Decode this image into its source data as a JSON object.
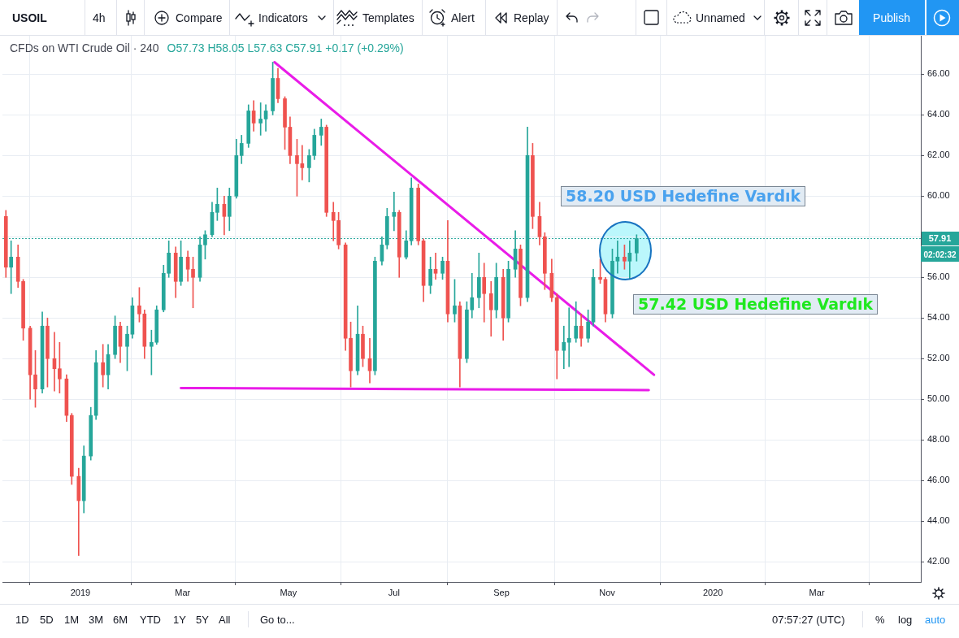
{
  "chart_data": {
    "type": "candlestick",
    "title": "CFDs on WTI Crude Oil · 240",
    "subtitle": "O57.73 H58.05 L57.63 C57.91 +0.17 (+0.29%)",
    "x": [
      "2018-11-19",
      "2018-11-22",
      "2018-11-26",
      "2018-11-29",
      "2018-12-03",
      "2018-12-06",
      "2018-12-10",
      "2018-12-13",
      "2018-12-17",
      "2018-12-20",
      "2018-12-24",
      "2018-12-27",
      "2018-12-31",
      "2019-01-03",
      "2019-01-07",
      "2019-01-10",
      "2019-01-14",
      "2019-01-17",
      "2019-01-21",
      "2019-01-24",
      "2019-01-28",
      "2019-01-31",
      "2019-02-04",
      "2019-02-07",
      "2019-02-11",
      "2019-02-14",
      "2019-02-18",
      "2019-02-21",
      "2019-02-25",
      "2019-02-28",
      "2019-03-04",
      "2019-03-07",
      "2019-03-11",
      "2019-03-14",
      "2019-03-18",
      "2019-03-21",
      "2019-03-25",
      "2019-03-28",
      "2019-04-01",
      "2019-04-04",
      "2019-04-08",
      "2019-04-11",
      "2019-04-15",
      "2019-04-18",
      "2019-04-22",
      "2019-04-25",
      "2019-04-29",
      "2019-05-02",
      "2019-05-06",
      "2019-05-09",
      "2019-05-13",
      "2019-05-16",
      "2019-05-20",
      "2019-05-23",
      "2019-05-27",
      "2019-05-30",
      "2019-06-03",
      "2019-06-06",
      "2019-06-10",
      "2019-06-13",
      "2019-06-17",
      "2019-06-20",
      "2019-06-24",
      "2019-06-27",
      "2019-07-01",
      "2019-07-04",
      "2019-07-08",
      "2019-07-11",
      "2019-07-15",
      "2019-07-18",
      "2019-07-22",
      "2019-07-25",
      "2019-07-29",
      "2019-08-01",
      "2019-08-05",
      "2019-08-08",
      "2019-08-12",
      "2019-08-15",
      "2019-08-19",
      "2019-08-22",
      "2019-08-26",
      "2019-08-29",
      "2019-09-02",
      "2019-09-05",
      "2019-09-09",
      "2019-09-12",
      "2019-09-16",
      "2019-09-19",
      "2019-09-23",
      "2019-09-26",
      "2019-09-30",
      "2019-10-03",
      "2019-10-07",
      "2019-10-10",
      "2019-10-14",
      "2019-10-17",
      "2019-10-21",
      "2019-10-24",
      "2019-10-28",
      "2019-10-31",
      "2019-11-04",
      "2019-11-07",
      "2019-11-11",
      "2019-11-14",
      "2019-11-18"
    ],
    "ohlc": [
      [
        59.0,
        59.3,
        56.0,
        56.5
      ],
      [
        56.5,
        57.8,
        55.2,
        57.0
      ],
      [
        57.0,
        57.6,
        55.5,
        55.8
      ],
      [
        55.8,
        55.9,
        52.9,
        53.5
      ],
      [
        53.5,
        53.6,
        50.0,
        51.2
      ],
      [
        51.2,
        52.4,
        49.6,
        50.5
      ],
      [
        50.5,
        54.3,
        50.3,
        53.6
      ],
      [
        53.6,
        54.0,
        50.6,
        52.0
      ],
      [
        52.0,
        53.3,
        50.4,
        51.5
      ],
      [
        51.5,
        52.8,
        50.3,
        51.0
      ],
      [
        51.0,
        51.2,
        48.9,
        49.2
      ],
      [
        49.2,
        49.3,
        45.8,
        46.2
      ],
      [
        46.2,
        46.6,
        42.3,
        45.0
      ],
      [
        45.0,
        47.7,
        44.4,
        47.2
      ],
      [
        47.2,
        49.6,
        47.0,
        49.2
      ],
      [
        49.2,
        52.4,
        49.0,
        51.8
      ],
      [
        51.8,
        52.7,
        50.6,
        51.2
      ],
      [
        51.2,
        52.7,
        50.5,
        52.2
      ],
      [
        52.2,
        54.1,
        52.0,
        53.6
      ],
      [
        53.6,
        53.8,
        51.8,
        52.6
      ],
      [
        52.6,
        53.6,
        51.4,
        53.2
      ],
      [
        53.2,
        55.0,
        53.0,
        54.6
      ],
      [
        54.6,
        55.5,
        53.8,
        54.2
      ],
      [
        54.2,
        54.4,
        52.0,
        52.6
      ],
      [
        52.6,
        53.4,
        51.2,
        52.8
      ],
      [
        52.8,
        54.6,
        52.7,
        54.4
      ],
      [
        54.4,
        56.6,
        54.3,
        56.2
      ],
      [
        56.2,
        57.8,
        56.0,
        57.2
      ],
      [
        57.2,
        57.5,
        55.0,
        55.8
      ],
      [
        55.8,
        57.8,
        55.6,
        57.0
      ],
      [
        57.0,
        57.3,
        55.8,
        56.4
      ],
      [
        56.4,
        57.0,
        54.5,
        56.0
      ],
      [
        56.0,
        58.0,
        55.8,
        57.6
      ],
      [
        57.6,
        58.3,
        56.9,
        58.1
      ],
      [
        58.1,
        59.7,
        58.0,
        59.2
      ],
      [
        59.2,
        60.4,
        58.8,
        59.6
      ],
      [
        59.6,
        60.0,
        58.1,
        59.0
      ],
      [
        59.0,
        60.4,
        58.3,
        60.0
      ],
      [
        60.0,
        62.8,
        59.9,
        62.0
      ],
      [
        62.0,
        63.0,
        61.6,
        62.6
      ],
      [
        62.6,
        64.5,
        62.4,
        64.2
      ],
      [
        64.2,
        64.7,
        63.2,
        63.6
      ],
      [
        63.6,
        64.6,
        63.0,
        63.8
      ],
      [
        63.8,
        64.5,
        63.2,
        64.2
      ],
      [
        64.2,
        66.6,
        64.0,
        65.8
      ],
      [
        65.8,
        66.3,
        64.6,
        64.8
      ],
      [
        64.8,
        64.9,
        62.3,
        63.4
      ],
      [
        63.4,
        63.9,
        61.6,
        62.0
      ],
      [
        62.0,
        62.8,
        60.0,
        61.6
      ],
      [
        61.6,
        62.5,
        60.8,
        61.4
      ],
      [
        61.4,
        62.3,
        60.7,
        62.0
      ],
      [
        62.0,
        63.3,
        61.8,
        63.0
      ],
      [
        63.0,
        63.8,
        62.5,
        63.4
      ],
      [
        63.4,
        63.5,
        59.0,
        59.2
      ],
      [
        59.2,
        59.7,
        57.8,
        58.8
      ],
      [
        58.8,
        59.2,
        57.4,
        57.6
      ],
      [
        57.6,
        57.7,
        52.4,
        53.0
      ],
      [
        53.0,
        53.8,
        50.6,
        51.4
      ],
      [
        51.4,
        54.6,
        51.2,
        53.2
      ],
      [
        53.2,
        53.6,
        51.6,
        52.0
      ],
      [
        52.0,
        53.0,
        50.8,
        51.4
      ],
      [
        51.4,
        57.0,
        51.2,
        56.8
      ],
      [
        56.8,
        58.0,
        56.6,
        57.6
      ],
      [
        57.6,
        59.4,
        57.4,
        59.0
      ],
      [
        59.0,
        60.2,
        58.3,
        59.2
      ],
      [
        59.2,
        59.3,
        56.0,
        57.0
      ],
      [
        57.0,
        58.3,
        56.9,
        57.8
      ],
      [
        57.8,
        60.9,
        57.6,
        60.4
      ],
      [
        60.4,
        60.6,
        57.6,
        57.8
      ],
      [
        57.8,
        57.9,
        54.8,
        55.6
      ],
      [
        55.6,
        57.0,
        55.2,
        56.4
      ],
      [
        56.4,
        57.2,
        55.9,
        56.2
      ],
      [
        56.2,
        57.0,
        55.9,
        56.8
      ],
      [
        56.8,
        58.8,
        53.8,
        54.2
      ],
      [
        54.2,
        55.9,
        53.8,
        54.6
      ],
      [
        54.6,
        54.8,
        50.6,
        52.0
      ],
      [
        52.0,
        54.8,
        51.8,
        54.4
      ],
      [
        54.4,
        56.2,
        54.0,
        55.0
      ],
      [
        55.0,
        57.2,
        54.5,
        56.0
      ],
      [
        56.0,
        56.7,
        53.8,
        55.2
      ],
      [
        55.2,
        55.8,
        53.1,
        54.4
      ],
      [
        54.4,
        56.7,
        54.0,
        56.0
      ],
      [
        56.0,
        56.4,
        52.9,
        54.0
      ],
      [
        54.0,
        56.8,
        53.8,
        56.4
      ],
      [
        56.4,
        58.3,
        56.0,
        57.4
      ],
      [
        57.4,
        57.6,
        54.6,
        55.0
      ],
      [
        55.0,
        63.4,
        54.8,
        62.0
      ],
      [
        62.0,
        62.6,
        58.4,
        59.0
      ],
      [
        59.0,
        59.7,
        57.6,
        58.0
      ],
      [
        58.0,
        58.2,
        55.4,
        56.2
      ],
      [
        56.2,
        56.9,
        54.8,
        55.0
      ],
      [
        55.0,
        55.2,
        51.0,
        52.4
      ],
      [
        52.4,
        53.6,
        51.5,
        52.8
      ],
      [
        52.8,
        54.5,
        51.6,
        53.0
      ],
      [
        53.0,
        54.8,
        52.8,
        53.6
      ],
      [
        53.6,
        54.2,
        52.6,
        53.0
      ],
      [
        53.0,
        54.4,
        52.8,
        53.8
      ],
      [
        53.8,
        56.4,
        53.6,
        56.0
      ],
      [
        56.0,
        56.9,
        55.7,
        55.9
      ],
      [
        55.9,
        56.0,
        53.8,
        54.2
      ],
      [
        54.2,
        57.4,
        54.0,
        56.8
      ],
      [
        56.8,
        57.8,
        56.2,
        57.0
      ],
      [
        57.0,
        57.6,
        56.4,
        56.8
      ],
      [
        56.8,
        57.8,
        55.9,
        57.2
      ],
      [
        57.2,
        58.1,
        56.8,
        57.91
      ]
    ],
    "colors": [
      "#ef5350",
      "#26a69a",
      "#ef5350",
      "#ef5350",
      "#ef5350",
      "#ef5350",
      "#26a69a",
      "#ef5350",
      "#ef5350",
      "#ef5350",
      "#ef5350",
      "#ef5350",
      "#ef5350",
      "#26a69a",
      "#26a69a",
      "#26a69a",
      "#ef5350",
      "#26a69a",
      "#26a69a",
      "#ef5350",
      "#26a69a",
      "#26a69a",
      "#ef5350",
      "#ef5350",
      "#26a69a",
      "#26a69a",
      "#26a69a",
      "#26a69a",
      "#ef5350",
      "#26a69a",
      "#ef5350",
      "#ef5350",
      "#26a69a",
      "#26a69a",
      "#26a69a",
      "#26a69a",
      "#ef5350",
      "#26a69a",
      "#26a69a",
      "#26a69a",
      "#26a69a",
      "#ef5350",
      "#26a69a",
      "#26a69a",
      "#26a69a",
      "#ef5350",
      "#ef5350",
      "#ef5350",
      "#ef5350",
      "#ef5350",
      "#26a69a",
      "#26a69a",
      "#26a69a",
      "#ef5350",
      "#ef5350",
      "#ef5350",
      "#ef5350",
      "#ef5350",
      "#26a69a",
      "#ef5350",
      "#ef5350",
      "#26a69a",
      "#26a69a",
      "#26a69a",
      "#26a69a",
      "#ef5350",
      "#26a69a",
      "#26a69a",
      "#ef5350",
      "#ef5350",
      "#26a69a",
      "#ef5350",
      "#26a69a",
      "#ef5350",
      "#26a69a",
      "#ef5350",
      "#26a69a",
      "#26a69a",
      "#26a69a",
      "#ef5350",
      "#ef5350",
      "#26a69a",
      "#ef5350",
      "#26a69a",
      "#26a69a",
      "#ef5350",
      "#26a69a",
      "#ef5350",
      "#ef5350",
      "#ef5350",
      "#ef5350",
      "#ef5350",
      "#26a69a",
      "#26a69a",
      "#26a69a",
      "#ef5350",
      "#26a69a",
      "#26a69a",
      "#ef5350",
      "#ef5350",
      "#26a69a",
      "#26a69a",
      "#ef5350",
      "#26a69a",
      "#26a69a"
    ],
    "series": [
      {
        "type": "line",
        "x": [
          "2019-04-23",
          "2019-11-28"
        ],
        "values": [
          66.6,
          51.2
        ],
        "color": "#e91ce8"
      },
      {
        "type": "line",
        "x": [
          "2019-02-28",
          "2019-11-25"
        ],
        "values": [
          50.55,
          50.45
        ],
        "color": "#e91ce8"
      }
    ],
    "xlim": [
      "2018-11-17",
      "2020-04-30"
    ],
    "xticks": [
      {
        "value": "2019-01-01",
        "label": "2019"
      },
      {
        "value": "2019-03-01",
        "label": "Mar"
      },
      {
        "value": "2019-05-01",
        "label": "May"
      },
      {
        "value": "2019-07-01",
        "label": "Jul"
      },
      {
        "value": "2019-09-01",
        "label": "Sep"
      },
      {
        "value": "2019-11-01",
        "label": "Nov"
      },
      {
        "value": "2020-01-01",
        "label": "2020"
      },
      {
        "value": "2020-03-01",
        "label": "Mar"
      }
    ],
    "ylim": [
      41.0,
      67.9
    ],
    "yticks": [
      {
        "value": 42,
        "label": "42.00"
      },
      {
        "value": 44,
        "label": "44.00"
      },
      {
        "value": 46,
        "label": "46.00"
      },
      {
        "value": 48,
        "label": "48.00"
      },
      {
        "value": 50,
        "label": "50.00"
      },
      {
        "value": 52,
        "label": "52.00"
      },
      {
        "value": 54,
        "label": "54.00"
      },
      {
        "value": 56,
        "label": "56.00"
      },
      {
        "value": 58,
        "label": null
      },
      {
        "value": 60,
        "label": "60.00"
      },
      {
        "value": 62,
        "label": "62.00"
      },
      {
        "value": 64,
        "label": "64.00"
      },
      {
        "value": 66,
        "label": "66.00"
      }
    ],
    "grid": true,
    "ref_lines": [
      {
        "axis": "y",
        "value": 57.91,
        "label": "57.91",
        "color": "#26a69a",
        "line_style": "dotted"
      }
    ],
    "annotations": [
      "58.20 USD Hedefine Vardık",
      "57.42 USD Hedefine Vardık",
      "02:02:32",
      "USOIL",
      "4h",
      "Compare",
      "Indicators",
      "Templates",
      "Alert",
      "Replay",
      "Unnamed",
      "Publish",
      "1D",
      "5D",
      "1M",
      "3M",
      "6M",
      "YTD",
      "1Y",
      "5Y",
      "All",
      "Go to...",
      "07:57:27 (UTC)",
      "%",
      "log",
      "auto"
    ]
  }
}
